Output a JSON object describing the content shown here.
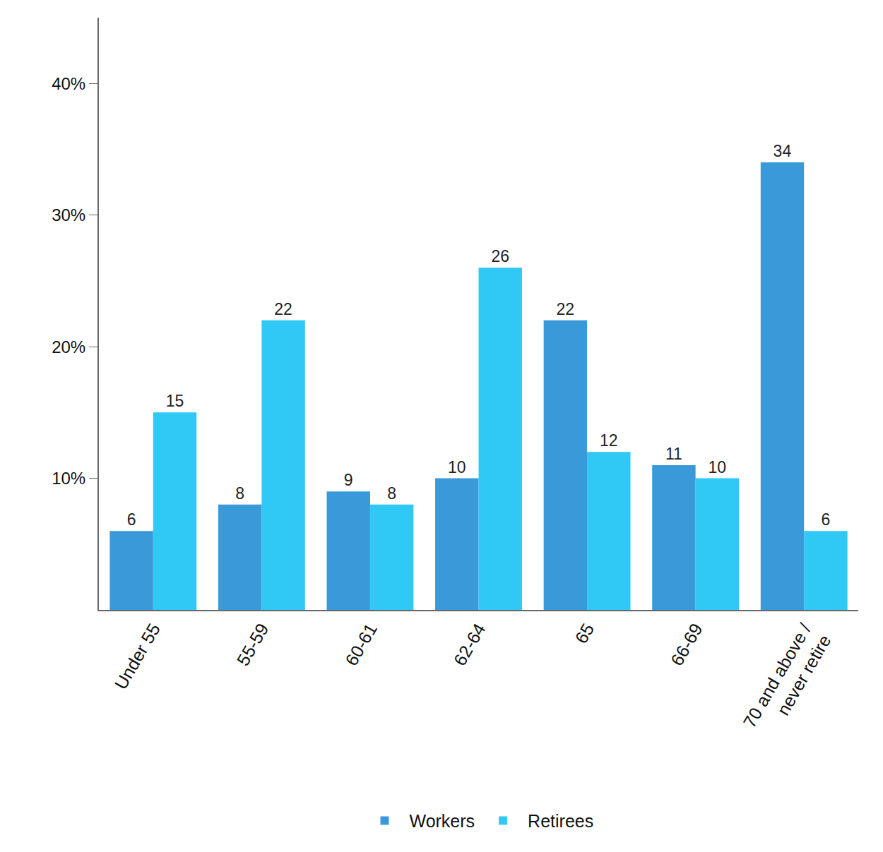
{
  "chart_data": {
    "type": "bar",
    "categories": [
      "Under 55",
      "55-59",
      "60-61",
      "62-64",
      "65",
      "66-69",
      "70 and above /\nnever retire"
    ],
    "series": [
      {
        "name": "Workers",
        "color": "#3a99d8",
        "values": [
          6,
          8,
          9,
          10,
          22,
          11,
          34
        ]
      },
      {
        "name": "Retirees",
        "color": "#30c8f5",
        "values": [
          15,
          22,
          8,
          26,
          12,
          10,
          6
        ]
      }
    ],
    "ylim": [
      0,
      45
    ],
    "yticks": [
      {
        "value": 10,
        "label": "10%"
      },
      {
        "value": 20,
        "label": "20%"
      },
      {
        "value": 30,
        "label": "30%"
      },
      {
        "value": 40,
        "label": "40%"
      }
    ],
    "grid": false,
    "legend": "bottom",
    "data_labels": true
  }
}
